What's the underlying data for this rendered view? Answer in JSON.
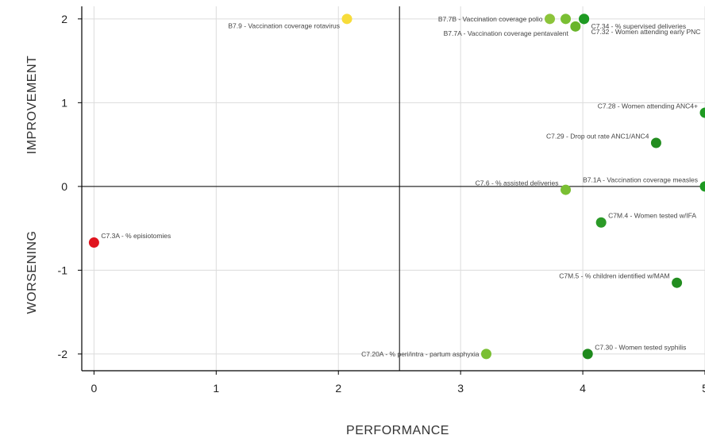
{
  "chart_data": {
    "type": "scatter",
    "xlabel": "PERFORMANCE",
    "ylabel_top": "IMPROVEMENT",
    "ylabel_bottom": "WORSENING",
    "xlim": [
      -0.1,
      5.0
    ],
    "ylim": [
      -2.2,
      2.15
    ],
    "x_ticks": [
      0,
      1,
      2,
      3,
      4,
      5
    ],
    "y_ticks": [
      -2,
      -1,
      0,
      1,
      2
    ],
    "x_tick_labels": [
      "0",
      "1",
      "2",
      "3",
      "4",
      "5"
    ],
    "y_tick_labels": [
      "-2",
      "-1",
      "0",
      "1",
      "2"
    ],
    "reference_lines": {
      "x": 2.5,
      "y": 0
    },
    "grid": true,
    "points": [
      {
        "label": "B7.9 - Vaccination coverage rotavirus",
        "x": 2.07,
        "y": 2.0,
        "color": "#f7dc3a",
        "label_side": "left",
        "label_dy": 1
      },
      {
        "label": "B7.7B - Vaccination coverage polio",
        "x": 3.73,
        "y": 2.0,
        "color": "#8cc43a",
        "label_side": "left",
        "label_dy": 0
      },
      {
        "label": "",
        "x": 3.86,
        "y": 2.0,
        "color": "#7abf33",
        "label_side": "none",
        "label_dy": 0
      },
      {
        "label": "B7.7A - Vaccination coverage pentavalent",
        "x": 3.94,
        "y": 1.91,
        "color": "#6ab52b",
        "label_side": "left",
        "label_dy": 1
      },
      {
        "label": "C7.34 - % supervised deliveries",
        "x": 4.01,
        "y": 2.0,
        "color": "#1e9a22",
        "label_side": "right",
        "label_dy": 1.1
      },
      {
        "label": "C7.32 - Women attending early PNC",
        "x": 4.01,
        "y": 2.0,
        "color": "#1e9a22",
        "label_side": "right",
        "label_dy": 1.9
      },
      {
        "label": "C7.28 - Women attending ANC4+",
        "x": 5.0,
        "y": 0.88,
        "color": "#1e9a22",
        "label_side": "left",
        "label_dy": -1
      },
      {
        "label": "C7.29 - Drop out rate ANC1/ANC4",
        "x": 4.6,
        "y": 0.52,
        "color": "#228d1f",
        "label_side": "left",
        "label_dy": -1
      },
      {
        "label": "C7.6 - % assisted deliveries",
        "x": 3.86,
        "y": -0.04,
        "color": "#7abf33",
        "label_side": "left",
        "label_dy": -1
      },
      {
        "label": "B7.1A - Vaccination coverage measles",
        "x": 5.0,
        "y": 0.0,
        "color": "#1e9a22",
        "label_side": "left",
        "label_dy": -1
      },
      {
        "label": "C7M.4 - Women tested w/IFA",
        "x": 4.15,
        "y": -0.43,
        "color": "#2b9a27",
        "label_side": "right",
        "label_dy": -1
      },
      {
        "label": "C7.3A - % episiotomies",
        "x": 0.0,
        "y": -0.67,
        "color": "#e0141e",
        "label_side": "right",
        "label_dy": -1
      },
      {
        "label": "C7M.5 - % children identified w/MAM",
        "x": 4.77,
        "y": -1.15,
        "color": "#228d1f",
        "label_side": "left",
        "label_dy": -1
      },
      {
        "label": "C7.20A - % peri/intra - partum asphyxia",
        "x": 3.21,
        "y": -2.0,
        "color": "#7abf33",
        "label_side": "left",
        "label_dy": 0
      },
      {
        "label": "C7.30 - Women tested syphilis",
        "x": 4.04,
        "y": -2.0,
        "color": "#1e8a1c",
        "label_side": "right",
        "label_dy": -1
      }
    ]
  }
}
